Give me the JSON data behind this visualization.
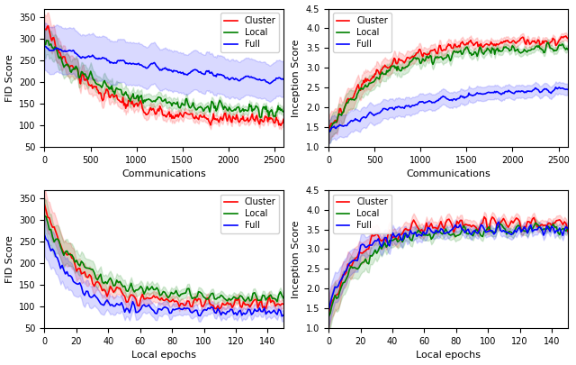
{
  "colors": {
    "cluster": "#FF0000",
    "local": "#008000",
    "full": "#0000FF"
  },
  "alpha_fill": 0.15,
  "linewidth": 1.2,
  "top_left": {
    "xlabel": "Communications",
    "ylabel": "FID Score",
    "xlim": [
      0,
      2600
    ],
    "ylim": [
      50,
      370
    ],
    "yticks": [
      50,
      100,
      150,
      200,
      250,
      300,
      350
    ],
    "xticks": [
      0,
      500,
      1000,
      1500,
      2000,
      2500
    ],
    "legend_loc": "upper right"
  },
  "top_right": {
    "xlabel": "Communications",
    "ylabel": "Inception Score",
    "xlim": [
      0,
      2600
    ],
    "ylim": [
      1.0,
      4.5
    ],
    "yticks": [
      1.0,
      1.5,
      2.0,
      2.5,
      3.0,
      3.5,
      4.0,
      4.5
    ],
    "xticks": [
      0,
      500,
      1000,
      1500,
      2000,
      2500
    ],
    "legend_loc": "upper left"
  },
  "bottom_left": {
    "xlabel": "Local epochs",
    "ylabel": "FID Score",
    "xlim": [
      0,
      150
    ],
    "ylim": [
      50,
      370
    ],
    "yticks": [
      50,
      100,
      150,
      200,
      250,
      300,
      350
    ],
    "xticks": [
      0,
      20,
      40,
      60,
      80,
      100,
      120,
      140
    ],
    "legend_loc": "upper right"
  },
  "bottom_right": {
    "xlabel": "Local epochs",
    "ylabel": "Inception Score",
    "xlim": [
      0,
      150
    ],
    "ylim": [
      1.0,
      4.5
    ],
    "yticks": [
      1.0,
      1.5,
      2.0,
      2.5,
      3.0,
      3.5,
      4.0,
      4.5
    ],
    "xticks": [
      0,
      20,
      40,
      60,
      80,
      100,
      120,
      140
    ],
    "legend_loc": "upper left"
  },
  "legend_labels": [
    "Cluster",
    "Local",
    "Full"
  ]
}
